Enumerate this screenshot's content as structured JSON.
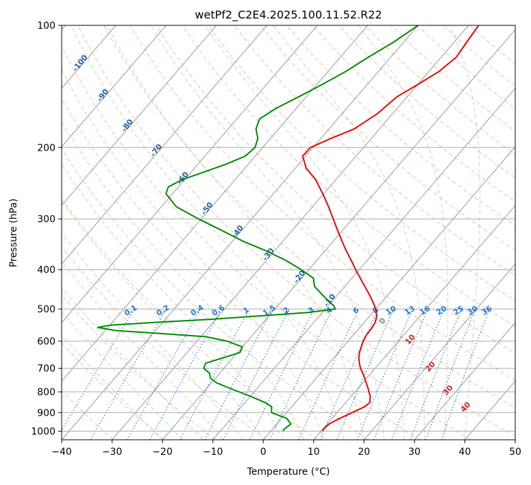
{
  "chart_data": {
    "type": "line",
    "title": "wetPf2_C2E4.2025.100.11.52.R22",
    "xlabel": "Temperature (°C)",
    "ylabel": "Pressure (hPa)",
    "xlim": [
      -40,
      50
    ],
    "ylim": [
      1050,
      100
    ],
    "y_scale": "log",
    "grid": true,
    "x_ticks": [
      -40,
      -30,
      -20,
      -10,
      0,
      10,
      20,
      30,
      40,
      50
    ],
    "y_ticks": [
      100,
      200,
      300,
      400,
      500,
      600,
      700,
      800,
      900,
      1000
    ],
    "skew": "skew-t",
    "colors": {
      "temperature": "#ee0000",
      "dewpoint": "#008800",
      "isotherm": "#999999",
      "dry_adiabat": "#f08060",
      "moist_adiabat": "#70c070",
      "mixing_ratio": "#1f78d8",
      "isotherm_label": "#1f5fa8",
      "frame": "#000000"
    },
    "series": [
      {
        "name": "Temperature",
        "p": [
          1000,
          990,
          960,
          930,
          900,
          870,
          850,
          820,
          800,
          780,
          760,
          740,
          720,
          700,
          680,
          660,
          640,
          620,
          600,
          580,
          560,
          540,
          520,
          500,
          480,
          460,
          440,
          420,
          400,
          380,
          360,
          340,
          320,
          300,
          280,
          260,
          240,
          225,
          210,
          200,
          190,
          180,
          165,
          150,
          140,
          130,
          120,
          110,
          100
        ],
        "t": [
          10.3,
          10.1,
          10.4,
          11.5,
          13.0,
          14.5,
          14.8,
          13.8,
          12.8,
          11.8,
          10.7,
          9.6,
          8.4,
          7.1,
          6.0,
          5.0,
          4.2,
          3.6,
          3.0,
          2.6,
          2.5,
          2.2,
          1.4,
          0.0,
          -1.8,
          -3.8,
          -6.0,
          -8.3,
          -10.7,
          -13.1,
          -15.7,
          -18.3,
          -21.0,
          -23.8,
          -26.8,
          -30.2,
          -34.0,
          -37.8,
          -40.6,
          -40.5,
          -38.0,
          -35.0,
          -33.0,
          -32.0,
          -30.0,
          -28.0,
          -27.0,
          -27.5,
          -28.0
        ]
      },
      {
        "name": "Dewpoint",
        "p": [
          1000,
          990,
          960,
          930,
          900,
          870,
          850,
          820,
          800,
          780,
          760,
          740,
          720,
          700,
          680,
          660,
          640,
          620,
          600,
          585,
          575,
          565,
          555,
          548,
          540,
          530,
          520,
          510,
          500,
          490,
          480,
          460,
          440,
          420,
          400,
          380,
          360,
          340,
          320,
          300,
          280,
          260,
          250,
          240,
          230,
          220,
          210,
          200,
          190,
          180,
          170,
          160,
          150,
          140,
          130,
          120,
          110,
          100
        ],
        "td": [
          2.5,
          2.3,
          2.8,
          1.0,
          -3.0,
          -4.0,
          -6.0,
          -10.0,
          -13.0,
          -16.0,
          -19.0,
          -21.0,
          -22.0,
          -24.0,
          -24.5,
          -22.0,
          -19.5,
          -20.0,
          -24.0,
          -29.0,
          -38.0,
          -48.0,
          -52.0,
          -50.0,
          -42.0,
          -31.0,
          -22.0,
          -13.0,
          -8.0,
          -9.0,
          -10.5,
          -13.2,
          -16.0,
          -17.6,
          -21.5,
          -26.0,
          -31.5,
          -38.0,
          -44.0,
          -50.5,
          -57.0,
          -61.3,
          -62.0,
          -60.5,
          -57.5,
          -54.5,
          -52.0,
          -51.5,
          -52.5,
          -54.5,
          -55.5,
          -54.0,
          -51.5,
          -49.0,
          -46.5,
          -44.5,
          -42.0,
          -40.0
        ]
      }
    ],
    "isotherm_labels": [
      "-100",
      "-90",
      "-80",
      "-70",
      "-60",
      "-50",
      "-40",
      "-30",
      "-20",
      "-10"
    ],
    "mixing_ratio_labels": [
      "0.1",
      "0.2",
      "0.4",
      "0.6",
      "1",
      "1.5",
      "2",
      "3",
      "4",
      "6",
      "8",
      "10",
      "13",
      "16",
      "20",
      "25",
      "30",
      "36"
    ],
    "dry_adiabat_labels": [
      "0",
      "10",
      "20",
      "30",
      "40"
    ]
  }
}
